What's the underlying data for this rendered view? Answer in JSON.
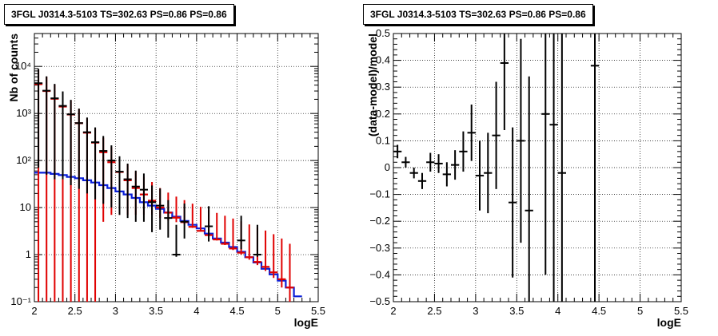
{
  "chart_data": [
    {
      "type": "line",
      "title": "3FGL J0314.3-5103 TS=302.63 PS=0.86 PS=0.86",
      "xlabel": "logE",
      "ylabel": "Nb of counts",
      "xlim": [
        2,
        5.5
      ],
      "ylim": [
        0.1,
        50000
      ],
      "yscale": "log",
      "grid": true,
      "x_ticks": [
        "2",
        "2.5",
        "3",
        "3.5",
        "4",
        "4.5",
        "5",
        "5.5"
      ],
      "y_ticks": [
        "10⁻¹",
        "1",
        "10",
        "10²",
        "10³",
        "10⁴"
      ],
      "colors": {
        "data": "#000000",
        "model": "#e00000",
        "background": "#0a1fd8"
      },
      "series": [
        {
          "kind": "model_points",
          "color": "#e00000",
          "x": [
            2.05,
            2.15,
            2.25,
            2.35,
            2.45,
            2.55,
            2.65,
            2.75,
            2.85,
            2.95,
            3.05,
            3.15,
            3.25,
            3.35,
            3.45,
            3.55,
            3.65,
            3.75,
            3.85,
            3.95,
            4.05,
            4.15,
            4.25,
            4.35,
            4.45,
            4.55,
            4.65,
            4.75,
            4.85,
            4.95,
            5.05,
            5.15
          ],
          "y": [
            4200,
            3000,
            2050,
            1400,
            950,
            620,
            390,
            240,
            150,
            92,
            57,
            38,
            26,
            19,
            14,
            10,
            7.8,
            6.1,
            4.9,
            3.9,
            3.2,
            2.6,
            2.1,
            1.7,
            1.35,
            1.1,
            0.88,
            0.7,
            0.55,
            0.42,
            0.3,
            0.2
          ],
          "err_lo": [
            4200,
            3000,
            2050,
            1400,
            950,
            620,
            390,
            240,
            145,
            85,
            50,
            31,
            19,
            12,
            7,
            4,
            2.5,
            1.2,
            0.5,
            0.2,
            0.1,
            0.1,
            0.1,
            0.1,
            0.1,
            0.1,
            0.1,
            0.1,
            0.1,
            0.1,
            0.1,
            0.1
          ],
          "err_hi": [
            4200,
            3000,
            2050,
            1400,
            950,
            620,
            390,
            240,
            155,
            99,
            64,
            45,
            33,
            26,
            21,
            16,
            13,
            11,
            9.5,
            8.2,
            7.2,
            6.3,
            5.6,
            5.0,
            4.5,
            4.0,
            3.5,
            3.1,
            2.7,
            2.3,
            1.9,
            1.5
          ]
        },
        {
          "kind": "data_points",
          "color": "#000000",
          "x": [
            2.05,
            2.15,
            2.25,
            2.35,
            2.45,
            2.55,
            2.65,
            2.75,
            2.85,
            2.95,
            3.05,
            3.15,
            3.25,
            3.35,
            3.45,
            3.55,
            3.65,
            3.75,
            3.85,
            4.15,
            4.55,
            4.75
          ],
          "y": [
            4400,
            3050,
            2100,
            1450,
            960,
            625,
            400,
            245,
            160,
            100,
            58,
            40,
            28,
            24,
            13,
            11,
            6,
            1,
            5,
            4,
            2,
            1
          ],
          "err_lo": [
            4330,
            3000,
            2060,
            1410,
            930,
            600,
            380,
            230,
            148,
            90,
            51,
            34,
            23,
            19,
            10,
            7.6,
            3.7,
            0.1,
            2.8,
            2.1,
            0.7,
            0.1
          ],
          "err_hi": [
            4470,
            3100,
            2140,
            1490,
            990,
            650,
            420,
            260,
            172,
            110,
            65,
            46,
            33,
            29,
            16.5,
            14.5,
            8.4,
            3.3,
            7.2,
            6.7,
            4.7,
            3.3
          ]
        },
        {
          "kind": "background_step",
          "color": "#0a1fd8",
          "edges": [
            2.0,
            2.1,
            2.2,
            2.3,
            2.4,
            2.5,
            2.6,
            2.7,
            2.8,
            2.9,
            3.0,
            3.1,
            3.2,
            3.3,
            3.4,
            3.5,
            3.6,
            3.7,
            3.8,
            3.9,
            4.0,
            4.1,
            4.2,
            4.3,
            4.4,
            4.5,
            4.6,
            4.7,
            4.8,
            4.9,
            5.0,
            5.1,
            5.2,
            5.3
          ],
          "y": [
            55,
            55,
            52,
            49,
            45,
            42,
            38,
            34,
            30,
            26,
            22,
            19,
            16,
            13,
            11,
            9.4,
            7.8,
            6.4,
            5.2,
            4.3,
            3.6,
            2.8,
            2.2,
            1.8,
            1.45,
            1.15,
            0.88,
            0.68,
            0.5,
            0.38,
            0.28,
            0.2,
            0.13
          ]
        }
      ]
    },
    {
      "type": "scatter",
      "title": "3FGL J0314.3-5103 TS=302.63 PS=0.86 PS=0.86",
      "xlabel": "logE",
      "ylabel": "(data-model)/model",
      "xlim": [
        2,
        5.5
      ],
      "ylim": [
        -0.5,
        0.5
      ],
      "grid": true,
      "x_ticks": [
        "2",
        "2.5",
        "3",
        "3.5",
        "4",
        "4.5",
        "5",
        "5.5"
      ],
      "y_ticks": [
        "−0.5",
        "−0.4",
        "−0.3",
        "−0.2",
        "−0.1",
        "0",
        "0.1",
        "0.2",
        "0.3",
        "0.4",
        "0.5"
      ],
      "series": [
        {
          "kind": "residuals",
          "color": "#000000",
          "x": [
            2.05,
            2.15,
            2.25,
            2.35,
            2.45,
            2.55,
            2.65,
            2.75,
            2.85,
            2.95,
            3.05,
            3.15,
            3.25,
            3.35,
            3.45,
            3.55,
            3.65,
            3.85,
            3.95,
            4.05,
            4.45
          ],
          "y": [
            0.06,
            0.02,
            -0.02,
            -0.05,
            0.02,
            0.015,
            -0.025,
            0.01,
            0.06,
            0.13,
            -0.03,
            -0.02,
            0.12,
            0.39,
            -0.13,
            0.1,
            -0.16,
            0.2,
            0.16,
            -0.02,
            0.38
          ],
          "err": [
            0.025,
            0.02,
            0.02,
            0.03,
            0.035,
            0.035,
            0.045,
            0.055,
            0.075,
            0.105,
            0.13,
            0.15,
            0.2,
            0.25,
            0.28,
            0.38,
            0.5,
            0.6,
            0.8,
            1.0,
            1.5
          ]
        }
      ]
    }
  ]
}
